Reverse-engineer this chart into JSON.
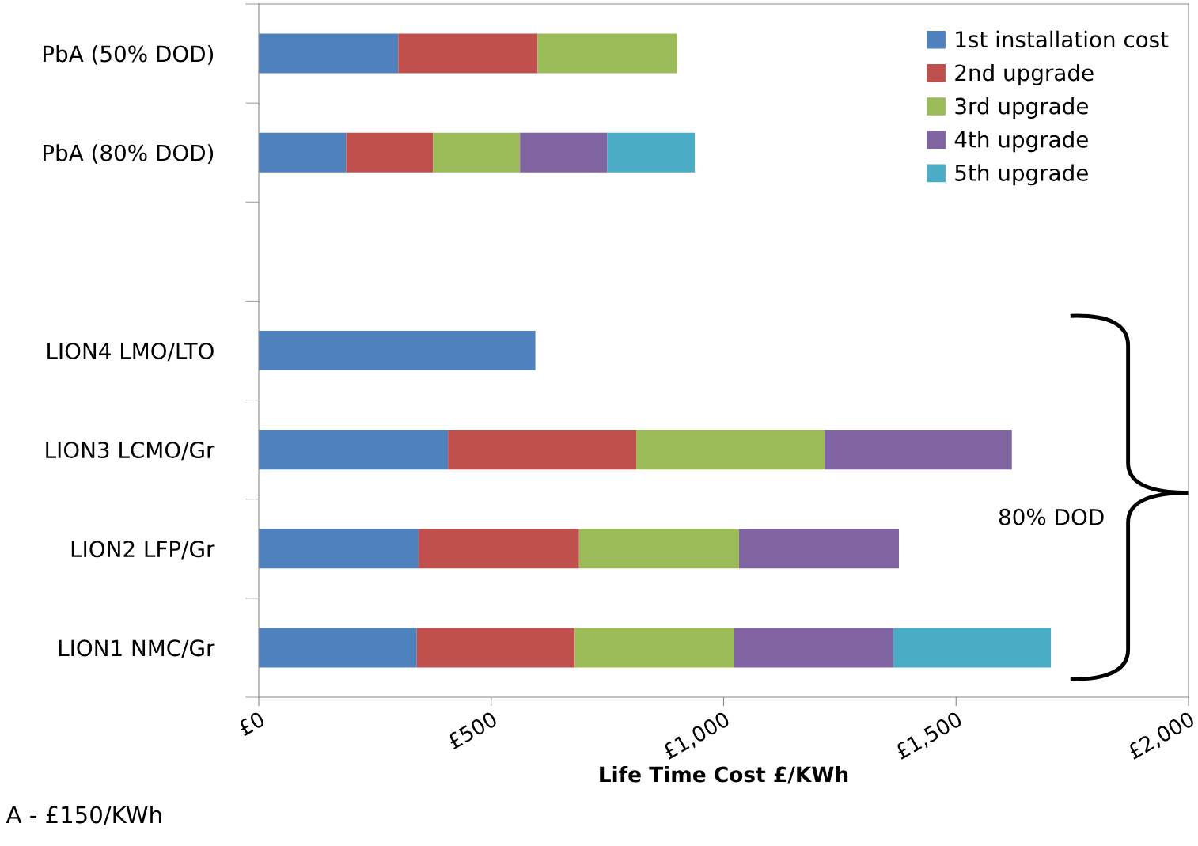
{
  "chart_data": {
    "type": "bar",
    "orientation": "horizontal",
    "stacked": true,
    "categories": [
      "PbA (50% DOD)",
      "PbA (80% DOD)",
      null,
      "LION4 LMO/LTO",
      "LION3 LCMO/Gr",
      "LION2 LFP/Gr",
      "LION1 NMC/Gr"
    ],
    "series": [
      {
        "name": "1st installation cost",
        "color": "#4f81bd",
        "values": [
          300,
          188,
          null,
          595,
          407,
          344,
          340
        ]
      },
      {
        "name": "2nd upgrade",
        "color": "#c0504d",
        "values": [
          300,
          187,
          null,
          null,
          405,
          345,
          340
        ]
      },
      {
        "name": "3rd upgrade",
        "color": "#9bbb59",
        "values": [
          300,
          187,
          null,
          null,
          405,
          344,
          343
        ]
      },
      {
        "name": "4th upgrade",
        "color": "#8064a2",
        "values": [
          null,
          188,
          null,
          null,
          403,
          344,
          342
        ]
      },
      {
        "name": "5th upgrade",
        "color": "#4bacc6",
        "values": [
          null,
          188,
          null,
          null,
          null,
          null,
          339
        ]
      }
    ],
    "xlim": [
      0,
      2000
    ],
    "xticks": [
      {
        "value": 0,
        "label": "£0"
      },
      {
        "value": 500,
        "label": "£500"
      },
      {
        "value": 1000,
        "label": "£1,000"
      },
      {
        "value": 1500,
        "label": "£1,500"
      },
      {
        "value": 2000,
        "label": "£2,000"
      }
    ],
    "xlabel": "Life Time Cost £/KWh",
    "legend": "top right",
    "grid": false,
    "annotations": [
      "80% DOD",
      "A - £150/KWh"
    ]
  }
}
